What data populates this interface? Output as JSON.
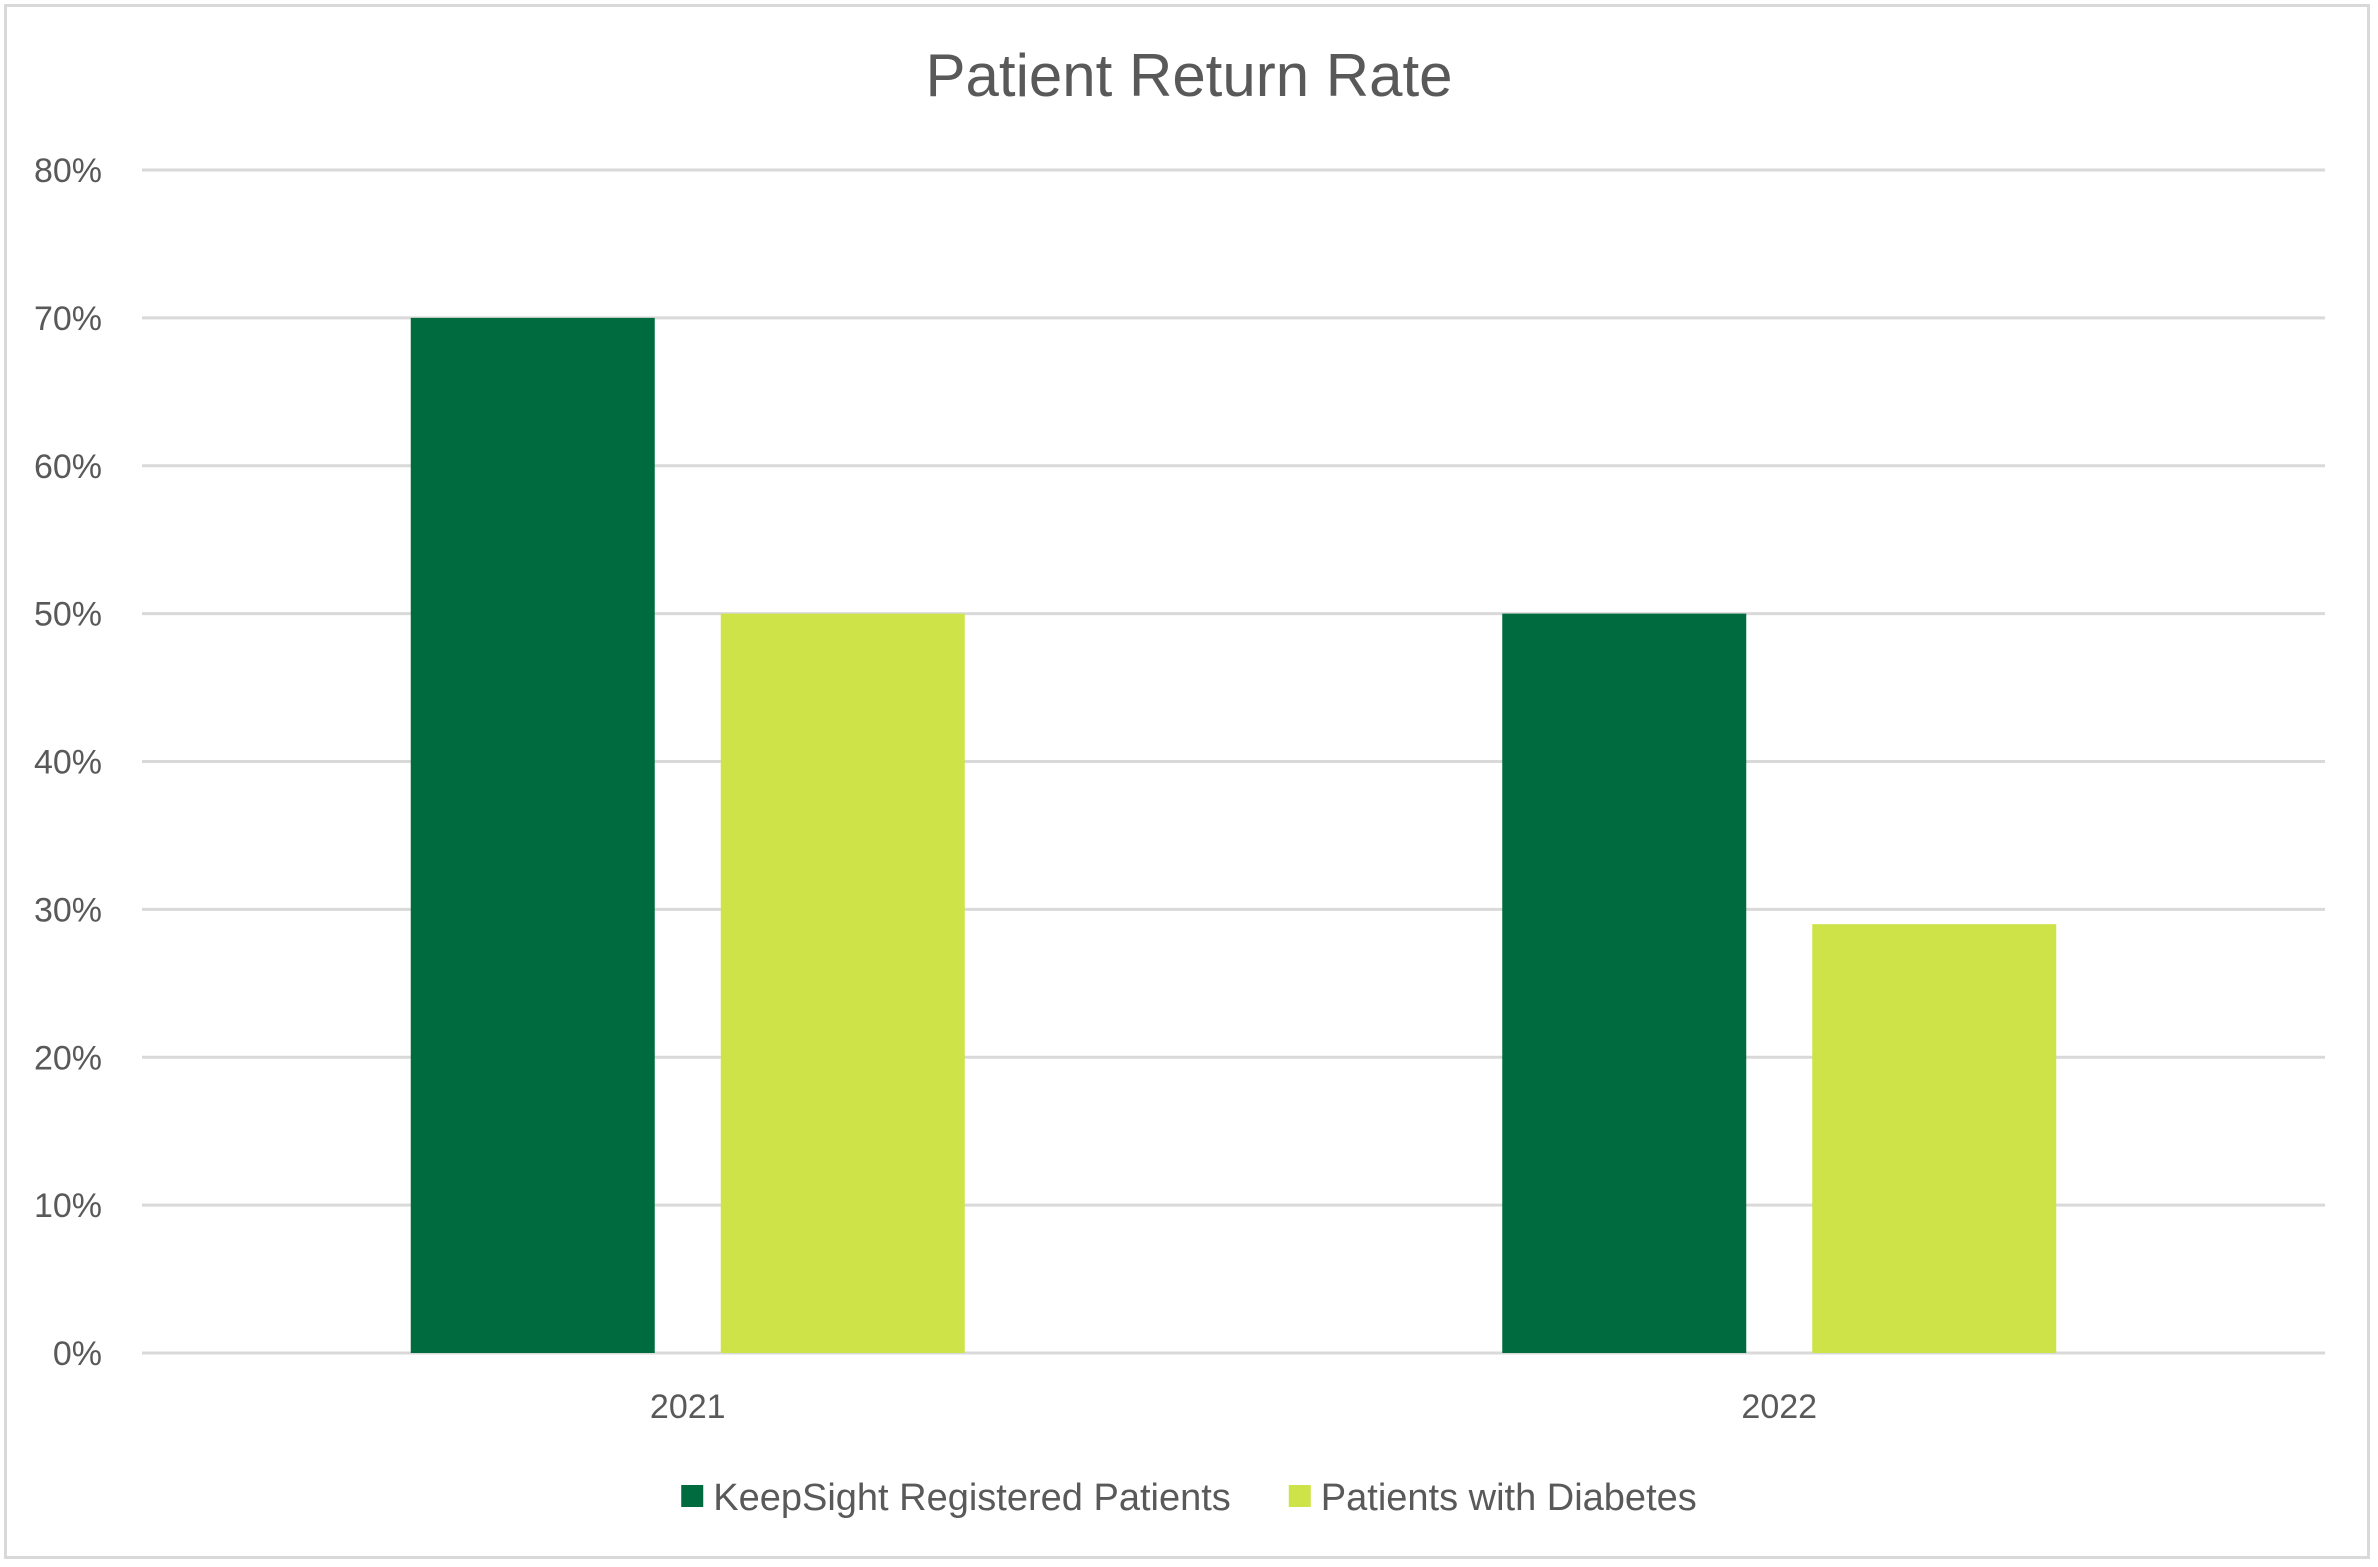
{
  "chart_data": {
    "type": "bar",
    "title": "Patient Return Rate",
    "xlabel": "",
    "ylabel": "",
    "categories": [
      "2021",
      "2022"
    ],
    "series": [
      {
        "name": "KeepSight Registered Patients",
        "values": [
          70,
          50
        ],
        "color": "#006b3f"
      },
      {
        "name": "Patients with Diabetes",
        "values": [
          50,
          29
        ],
        "color": "#cde348"
      }
    ],
    "ylim": [
      0,
      80
    ],
    "yticks": [
      0,
      10,
      20,
      30,
      40,
      50,
      60,
      70,
      80
    ],
    "ytick_format": "percent",
    "grid": true,
    "legend_position": "bottom"
  }
}
